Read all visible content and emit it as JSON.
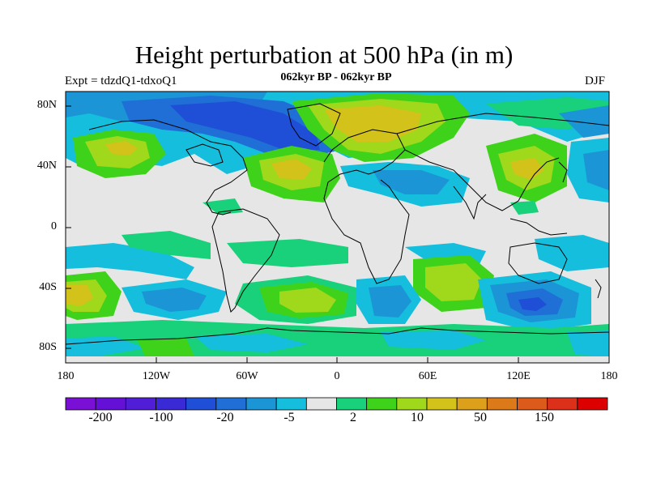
{
  "title": "Height perturbation at 500 hPa (in m)",
  "subtitle": "062kyr BP - 062kyr BP",
  "left_label": "Expt = tdzdQ1-tdxoQ1",
  "right_label": "DJF",
  "y_ticks": [
    "80N",
    "40N",
    "0",
    "40S",
    "80S"
  ],
  "x_ticks": [
    "180",
    "120W",
    "60W",
    "0",
    "60E",
    "120E",
    "180"
  ],
  "colorbar": {
    "colors": [
      "#7a0fd6",
      "#6410d6",
      "#4f1ed6",
      "#3a2ad6",
      "#1e4fd6",
      "#1f6fd6",
      "#1b95d6",
      "#14bedc",
      "#e6e6e6",
      "#18d17a",
      "#3fd21a",
      "#a0d81c",
      "#d2c21a",
      "#dca01a",
      "#dc7a1a",
      "#dc5a1a",
      "#dc301a",
      "#dc0000"
    ],
    "labels": [
      "-200",
      "-100",
      "-20",
      "-5",
      "2",
      "10",
      "50",
      "150"
    ]
  },
  "colors": {
    "background": "#e6e6e6",
    "coast": "#000000"
  }
}
